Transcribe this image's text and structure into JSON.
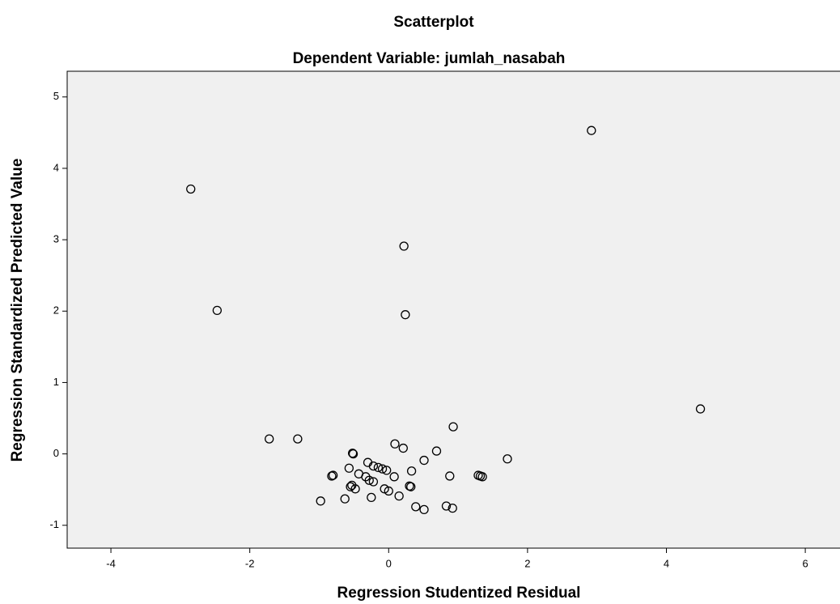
{
  "chart_data": {
    "type": "scatter",
    "title": "Scatterplot",
    "subtitle": "Dependent Variable: jumlah_nasabah",
    "x_label": "Regression Studentized Residual",
    "y_label": "Regression Standardized Predicted Value",
    "xlim": [
      -4.63,
      6.5
    ],
    "ylim": [
      -1.32,
      5.36
    ],
    "xticks": [
      -4,
      -2,
      0,
      2,
      4,
      6
    ],
    "yticks": [
      -1,
      0,
      1,
      2,
      3,
      4,
      5
    ],
    "x": [
      2.92,
      -2.85,
      0.22,
      -2.47,
      0.24,
      4.49,
      -1.72,
      -1.31,
      0.93,
      0.09,
      0.21,
      0.69,
      1.71,
      -0.52,
      -0.51,
      0.51,
      -0.3,
      -0.22,
      -0.15,
      -0.09,
      -0.03,
      -0.57,
      0.33,
      -0.43,
      -0.33,
      0.08,
      -0.82,
      -0.8,
      0.88,
      1.29,
      1.32,
      1.35,
      -0.28,
      -0.22,
      -0.53,
      -0.55,
      0.3,
      0.32,
      -0.48,
      -0.06,
      0.0,
      0.15,
      -0.25,
      -0.63,
      -0.98,
      0.39,
      0.83,
      0.92,
      0.51
    ],
    "values": [
      4.53,
      3.71,
      2.91,
      2.01,
      1.95,
      0.63,
      0.21,
      0.21,
      0.38,
      0.14,
      0.08,
      0.04,
      -0.07,
      0.01,
      0.0,
      -0.09,
      -0.12,
      -0.17,
      -0.19,
      -0.21,
      -0.23,
      -0.2,
      -0.24,
      -0.28,
      -0.32,
      -0.32,
      -0.31,
      -0.3,
      -0.31,
      -0.3,
      -0.31,
      -0.32,
      -0.37,
      -0.39,
      -0.44,
      -0.46,
      -0.45,
      -0.46,
      -0.49,
      -0.49,
      -0.52,
      -0.59,
      -0.61,
      -0.63,
      -0.66,
      -0.74,
      -0.73,
      -0.76,
      -0.78
    ]
  }
}
